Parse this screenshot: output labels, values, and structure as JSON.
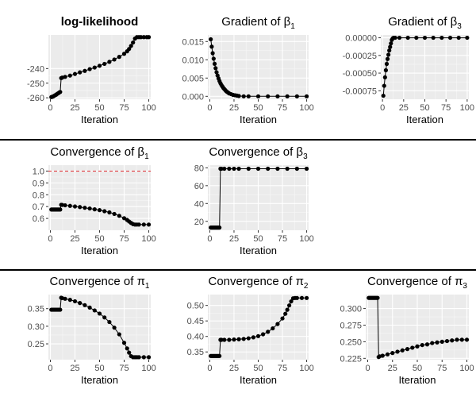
{
  "colors": {
    "panel": "#ebebeb",
    "points": "#000000",
    "reference_line": "#e0282e",
    "separator": "#000000"
  },
  "chart_data": [
    {
      "type": "scatter",
      "title": "log-likelihood",
      "title_style": "bold",
      "xlabel": "Iteration",
      "ylabel": "",
      "xlim": [
        -2,
        102
      ],
      "ylim": [
        -261,
        -217
      ],
      "xticks": [
        0,
        25,
        50,
        75,
        100
      ],
      "yticks": [
        -260,
        -250,
        -240
      ],
      "ytick_labels": [
        "-260",
        "-250",
        "-240"
      ],
      "grid": true,
      "series": [
        {
          "x": [
            1,
            2,
            3,
            4,
            5,
            6,
            7,
            8,
            9,
            10,
            11,
            12,
            15,
            20,
            25,
            30,
            35,
            40,
            45,
            50,
            55,
            60,
            65,
            70,
            75,
            78,
            80,
            82,
            84,
            86,
            88,
            90,
            92,
            95,
            98,
            100
          ],
          "y": [
            -259.5,
            -259.3,
            -259.0,
            -258.6,
            -258.2,
            -257.8,
            -257.3,
            -256.9,
            -256.4,
            -256.0,
            -246.5,
            -246.2,
            -245.7,
            -244.8,
            -243.7,
            -242.6,
            -241.6,
            -240.4,
            -239.3,
            -238.1,
            -236.8,
            -235.4,
            -233.8,
            -232.0,
            -229.9,
            -228.2,
            -226.6,
            -224.5,
            -222.2,
            -219.5,
            -218.5,
            -218.5,
            -218.5,
            -218.5,
            -218.5,
            -218.5
          ]
        }
      ]
    },
    {
      "type": "scatter",
      "title": "Gradient of β1",
      "title_main": "Gradient of β",
      "title_sub": "1",
      "xlabel": "Iteration",
      "ylabel": "",
      "xlim": [
        -2,
        102
      ],
      "ylim": [
        -0.0008,
        0.0168
      ],
      "xticks": [
        0,
        25,
        50,
        75,
        100
      ],
      "yticks": [
        0.0,
        0.005,
        0.01,
        0.015
      ],
      "ytick_labels": [
        "0.000",
        "0.005",
        "0.010",
        "0.015"
      ],
      "grid": true,
      "series": [
        {
          "x": [
            1,
            2,
            3,
            4,
            5,
            6,
            7,
            8,
            9,
            10,
            11,
            12,
            13,
            14,
            15,
            16,
            17,
            18,
            19,
            20,
            22,
            24,
            26,
            28,
            30,
            35,
            40,
            50,
            60,
            70,
            80,
            90,
            100
          ],
          "y": [
            0.0156,
            0.0136,
            0.0118,
            0.0103,
            0.0089,
            0.0077,
            0.0066,
            0.0057,
            0.0049,
            0.0042,
            0.0036,
            0.0031,
            0.0027,
            0.0023,
            0.002,
            0.0017,
            0.0014,
            0.0012,
            0.001,
            0.0008,
            0.0006,
            0.0004,
            0.0003,
            0.0002,
            0.0001,
            0.0,
            0.0,
            0.0,
            0.0,
            0.0,
            0.0,
            0.0,
            0.0
          ]
        }
      ]
    },
    {
      "type": "scatter",
      "title": "Gradient of β3",
      "title_main": "Gradient of β",
      "title_sub": "3",
      "xlabel": "Iteration",
      "ylabel": "",
      "xlim": [
        -2,
        102
      ],
      "ylim": [
        -0.00087,
        4e-05
      ],
      "xticks": [
        0,
        25,
        50,
        75,
        100
      ],
      "yticks": [
        -0.00075,
        -0.0005,
        -0.00025,
        0.0
      ],
      "ytick_labels": [
        "-0.00075",
        "-0.00050",
        "-0.00025",
        "0.00000"
      ],
      "grid": true,
      "series": [
        {
          "x": [
            1,
            2,
            3,
            4,
            5,
            6,
            7,
            8,
            9,
            10,
            11,
            12,
            13,
            15,
            20,
            30,
            40,
            50,
            60,
            70,
            80,
            90,
            100
          ],
          "y": [
            -0.00082,
            -0.00068,
            -0.00056,
            -0.00046,
            -0.00037,
            -0.0003,
            -0.00024,
            -0.00018,
            -0.00013,
            -8e-05,
            -3e-05,
            -1e-05,
            0.0,
            0.0,
            0.0,
            0.0,
            0.0,
            0.0,
            0.0,
            0.0,
            0.0,
            0.0,
            0.0
          ]
        }
      ]
    },
    {
      "type": "scatter",
      "title": "Convergence of β1",
      "title_main": "Convergence of β",
      "title_sub": "1",
      "xlabel": "Iteration",
      "ylabel": "",
      "xlim": [
        -2,
        102
      ],
      "ylim": [
        0.5,
        1.05
      ],
      "xticks": [
        0,
        25,
        50,
        75,
        100
      ],
      "yticks": [
        0.6,
        0.7,
        0.8,
        0.9,
        1.0
      ],
      "ytick_labels": [
        "0.6",
        "0.7",
        "0.8",
        "0.9",
        "1.0"
      ],
      "grid": true,
      "reference_line": {
        "y": 1.0,
        "style": "dashed",
        "color": "#e0282e"
      },
      "series": [
        {
          "x": [
            1,
            2,
            3,
            4,
            5,
            6,
            7,
            8,
            9,
            10,
            11,
            12,
            15,
            20,
            25,
            30,
            35,
            40,
            45,
            50,
            55,
            60,
            65,
            70,
            75,
            78,
            80,
            82,
            84,
            86,
            88,
            90,
            95,
            100
          ],
          "y": [
            0.675,
            0.675,
            0.675,
            0.675,
            0.675,
            0.675,
            0.675,
            0.675,
            0.675,
            0.675,
            0.715,
            0.714,
            0.711,
            0.706,
            0.701,
            0.696,
            0.69,
            0.684,
            0.677,
            0.67,
            0.661,
            0.651,
            0.638,
            0.622,
            0.602,
            0.587,
            0.574,
            0.562,
            0.552,
            0.548,
            0.548,
            0.548,
            0.548,
            0.548
          ]
        }
      ]
    },
    {
      "type": "scatter",
      "title": "Convergence of β3",
      "title_main": "Convergence of β",
      "title_sub": "3",
      "xlabel": "Iteration",
      "ylabel": "",
      "xlim": [
        -2,
        102
      ],
      "ylim": [
        10,
        83
      ],
      "xticks": [
        0,
        25,
        50,
        75,
        100
      ],
      "yticks": [
        20,
        40,
        60,
        80
      ],
      "ytick_labels": [
        "20",
        "40",
        "60",
        "80"
      ],
      "grid": true,
      "series": [
        {
          "x": [
            1,
            2,
            3,
            4,
            5,
            6,
            7,
            8,
            9,
            10,
            11,
            12,
            15,
            20,
            25,
            30,
            40,
            50,
            60,
            70,
            80,
            90,
            100
          ],
          "y": [
            13,
            13,
            13,
            13,
            13,
            13,
            13,
            13,
            13,
            13,
            79,
            79,
            79,
            79,
            79,
            79,
            79,
            79,
            79,
            79,
            79,
            79,
            79
          ]
        }
      ]
    },
    {
      "type": "scatter",
      "title": "Convergence of π1",
      "title_main": "Convergence of π",
      "title_sub": "1",
      "xlabel": "Iteration",
      "ylabel": "",
      "xlim": [
        -2,
        102
      ],
      "ylim": [
        0.205,
        0.39
      ],
      "xticks": [
        0,
        25,
        50,
        75,
        100
      ],
      "yticks": [
        0.25,
        0.3,
        0.35
      ],
      "ytick_labels": [
        "0.25",
        "0.30",
        "0.35"
      ],
      "grid": true,
      "series": [
        {
          "x": [
            1,
            2,
            3,
            4,
            5,
            6,
            7,
            8,
            9,
            10,
            11,
            12,
            15,
            20,
            25,
            30,
            35,
            40,
            45,
            50,
            55,
            60,
            65,
            70,
            75,
            78,
            80,
            82,
            84,
            86,
            88,
            90,
            95,
            100
          ],
          "y": [
            0.347,
            0.347,
            0.347,
            0.347,
            0.347,
            0.347,
            0.347,
            0.347,
            0.347,
            0.347,
            0.381,
            0.38,
            0.378,
            0.375,
            0.371,
            0.366,
            0.36,
            0.353,
            0.345,
            0.336,
            0.325,
            0.312,
            0.296,
            0.277,
            0.253,
            0.237,
            0.225,
            0.215,
            0.212,
            0.212,
            0.212,
            0.212,
            0.212,
            0.212
          ]
        }
      ]
    },
    {
      "type": "scatter",
      "title": "Convergence of π2",
      "title_main": "Convergence of π",
      "title_sub": "2",
      "xlabel": "Iteration",
      "ylabel": "",
      "xlim": [
        -2,
        102
      ],
      "ylim": [
        0.325,
        0.535
      ],
      "xticks": [
        0,
        25,
        50,
        75,
        100
      ],
      "yticks": [
        0.35,
        0.4,
        0.45,
        0.5
      ],
      "ytick_labels": [
        "0.35",
        "0.40",
        "0.45",
        "0.50"
      ],
      "grid": true,
      "series": [
        {
          "x": [
            1,
            2,
            3,
            4,
            5,
            6,
            7,
            8,
            9,
            10,
            11,
            12,
            15,
            20,
            25,
            30,
            35,
            40,
            45,
            50,
            55,
            60,
            65,
            70,
            75,
            78,
            80,
            82,
            84,
            86,
            88,
            90,
            95,
            100
          ],
          "y": [
            0.337,
            0.337,
            0.337,
            0.337,
            0.337,
            0.337,
            0.337,
            0.337,
            0.337,
            0.337,
            0.389,
            0.389,
            0.389,
            0.389,
            0.39,
            0.391,
            0.392,
            0.394,
            0.397,
            0.401,
            0.407,
            0.415,
            0.426,
            0.44,
            0.458,
            0.473,
            0.486,
            0.5,
            0.513,
            0.523,
            0.524,
            0.524,
            0.524,
            0.524
          ]
        }
      ]
    },
    {
      "type": "scatter",
      "title": "Convergence of π3",
      "title_main": "Convergence of π",
      "title_sub": "3",
      "xlabel": "Iteration",
      "ylabel": "",
      "xlim": [
        -2,
        102
      ],
      "ylim": [
        0.223,
        0.321
      ],
      "xticks": [
        0,
        25,
        50,
        75,
        100
      ],
      "yticks": [
        0.225,
        0.25,
        0.275,
        0.3
      ],
      "ytick_labels": [
        "0.225",
        "0.250",
        "0.275",
        "0.300"
      ],
      "grid": true,
      "series": [
        {
          "x": [
            1,
            2,
            3,
            4,
            5,
            6,
            7,
            8,
            9,
            10,
            11,
            12,
            15,
            20,
            25,
            30,
            35,
            40,
            45,
            50,
            55,
            60,
            65,
            70,
            75,
            80,
            85,
            90,
            95,
            100
          ],
          "y": [
            0.316,
            0.316,
            0.316,
            0.316,
            0.316,
            0.316,
            0.316,
            0.316,
            0.316,
            0.316,
            0.227,
            0.228,
            0.229,
            0.231,
            0.233,
            0.235,
            0.237,
            0.239,
            0.241,
            0.243,
            0.245,
            0.246,
            0.248,
            0.249,
            0.25,
            0.251,
            0.252,
            0.253,
            0.253,
            0.253
          ]
        }
      ]
    }
  ]
}
